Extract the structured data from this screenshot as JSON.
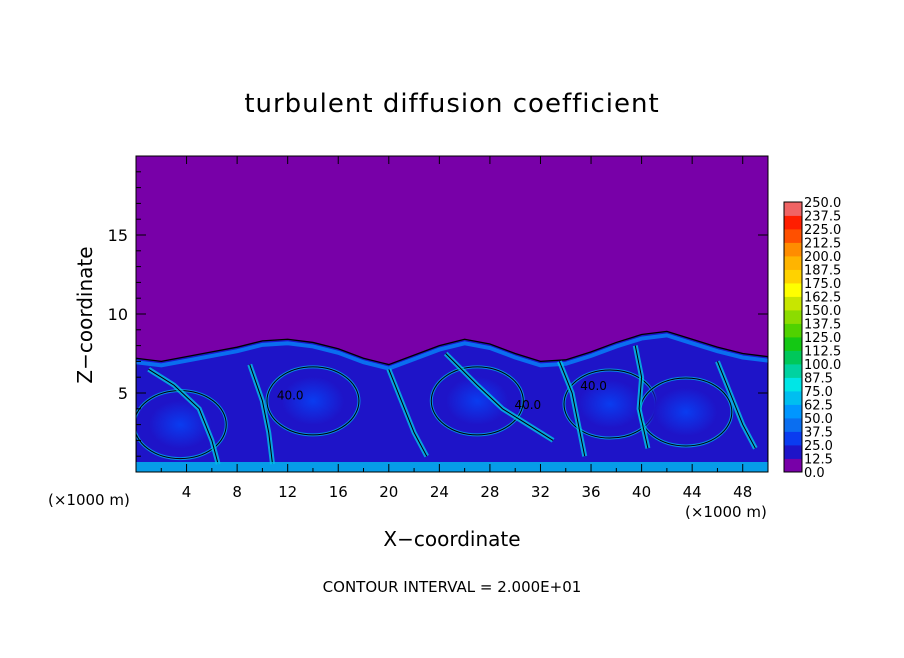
{
  "chart_data": {
    "type": "heatmap",
    "title": "turbulent diffusion coefficient",
    "xlabel": "X−coordinate",
    "ylabel": "Z−coordinate",
    "x_unit_left": "(×1000 m)",
    "x_unit_right": "(×1000 m)",
    "footer": "CONTOUR INTERVAL = 2.000E+01",
    "xlim": [
      0,
      50
    ],
    "ylim": [
      0,
      20
    ],
    "x_ticks": [
      4,
      8,
      12,
      16,
      20,
      24,
      28,
      32,
      36,
      40,
      44,
      48
    ],
    "y_ticks": [
      5,
      10,
      15
    ],
    "contour_interval": 20,
    "grid": false,
    "legend": "right",
    "colorbar": {
      "levels": [
        "0.0",
        "12.5",
        "25.0",
        "37.5",
        "50.0",
        "62.5",
        "75.0",
        "87.5",
        "100.0",
        "112.5",
        "125.0",
        "137.5",
        "150.0",
        "162.5",
        "175.0",
        "187.5",
        "200.0",
        "212.5",
        "225.0",
        "237.5",
        "250.0"
      ],
      "colors": [
        "#7800a8",
        "#1e14c8",
        "#0a3cf0",
        "#0a6ef0",
        "#0096ff",
        "#00bef0",
        "#00e6e6",
        "#00d2a0",
        "#00c85a",
        "#14c814",
        "#50d200",
        "#8cdc00",
        "#c8e600",
        "#ffff00",
        "#ffd200",
        "#ffb400",
        "#ff8c00",
        "#ff5000",
        "#ff1e00",
        "#f06464"
      ]
    },
    "background_value_above_boundary": "0.0",
    "turbulent_boundary_height": [
      [
        0,
        7.2
      ],
      [
        2,
        7.0
      ],
      [
        4,
        7.3
      ],
      [
        6,
        7.6
      ],
      [
        8,
        7.9
      ],
      [
        10,
        8.3
      ],
      [
        12,
        8.4
      ],
      [
        14,
        8.2
      ],
      [
        16,
        7.8
      ],
      [
        18,
        7.2
      ],
      [
        20,
        6.8
      ],
      [
        22,
        7.4
      ],
      [
        24,
        8.0
      ],
      [
        26,
        8.4
      ],
      [
        28,
        8.1
      ],
      [
        30,
        7.5
      ],
      [
        32,
        7.0
      ],
      [
        34,
        7.1
      ],
      [
        36,
        7.6
      ],
      [
        38,
        8.2
      ],
      [
        40,
        8.7
      ],
      [
        42,
        8.9
      ],
      [
        44,
        8.4
      ],
      [
        46,
        7.9
      ],
      [
        48,
        7.5
      ],
      [
        50,
        7.3
      ]
    ],
    "eddy_cores": [
      {
        "x": 3.5,
        "z": 3.0
      },
      {
        "x": 14.0,
        "z": 4.5
      },
      {
        "x": 27.0,
        "z": 4.5
      },
      {
        "x": 37.5,
        "z": 4.3
      },
      {
        "x": 43.5,
        "z": 3.8
      }
    ],
    "contour_labels": [
      {
        "x": 12.2,
        "z": 4.6,
        "text": "40.0"
      },
      {
        "x": 31.0,
        "z": 4.0,
        "text": "40.0"
      },
      {
        "x": 36.2,
        "z": 5.2,
        "text": "40.0"
      }
    ]
  }
}
